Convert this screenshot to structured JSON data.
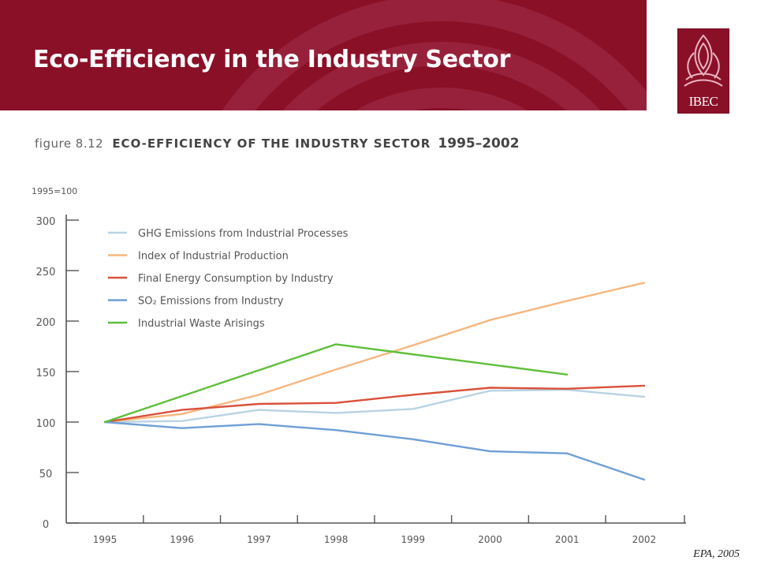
{
  "slide": {
    "title": "Eco-Efficiency in the Industry Sector",
    "source": "EPA, 2005",
    "logo_text": "IBEC",
    "header_color": "#8a1028"
  },
  "figure": {
    "label": "figure 8.12",
    "title": "ECO-EFFICIENCY OF THE INDUSTRY SECTOR",
    "years": "1995–2002"
  },
  "chart_data": {
    "type": "line",
    "title": "ECO-EFFICIENCY OF THE INDUSTRY SECTOR 1995–2002",
    "ylabel": "1995=100",
    "xlabel": "",
    "x": [
      "1995",
      "1996",
      "1997",
      "1998",
      "1999",
      "2000",
      "2001",
      "2002"
    ],
    "ylim": [
      0,
      300
    ],
    "yticks": [
      0,
      50,
      100,
      150,
      200,
      250,
      300
    ],
    "grid": false,
    "legend_position": "top-left",
    "series": [
      {
        "name": "GHG Emissions from Industrial Processes",
        "color": "#b9d3e3",
        "values": [
          100,
          101,
          112,
          109,
          113,
          131,
          132,
          125
        ]
      },
      {
        "name": "Index of Industrial Production",
        "color": "#f5b77f",
        "values": [
          100,
          108,
          127,
          152,
          176,
          201,
          220,
          238
        ]
      },
      {
        "name": "Final Energy Consumption by Industry",
        "color": "#d9503a",
        "values": [
          100,
          112,
          118,
          119,
          127,
          134,
          133,
          136
        ]
      },
      {
        "name": "SO2 Emissions from Industry",
        "color": "#6f9ed6",
        "values": [
          100,
          94,
          98,
          92,
          83,
          71,
          69,
          43
        ]
      },
      {
        "name": "Industrial Waste Arisings",
        "color": "#5fbf3a",
        "values": [
          100,
          null,
          null,
          177,
          null,
          null,
          147,
          null
        ]
      }
    ],
    "legend_labels": [
      {
        "text": "GHG Emissions from Industrial Processes"
      },
      {
        "text": "Index of Industrial Production"
      },
      {
        "text": "Final Energy Consumption by Industry"
      },
      {
        "text": "SO₂ Emissions from Industry"
      },
      {
        "text": "Industrial Waste Arisings"
      }
    ]
  }
}
